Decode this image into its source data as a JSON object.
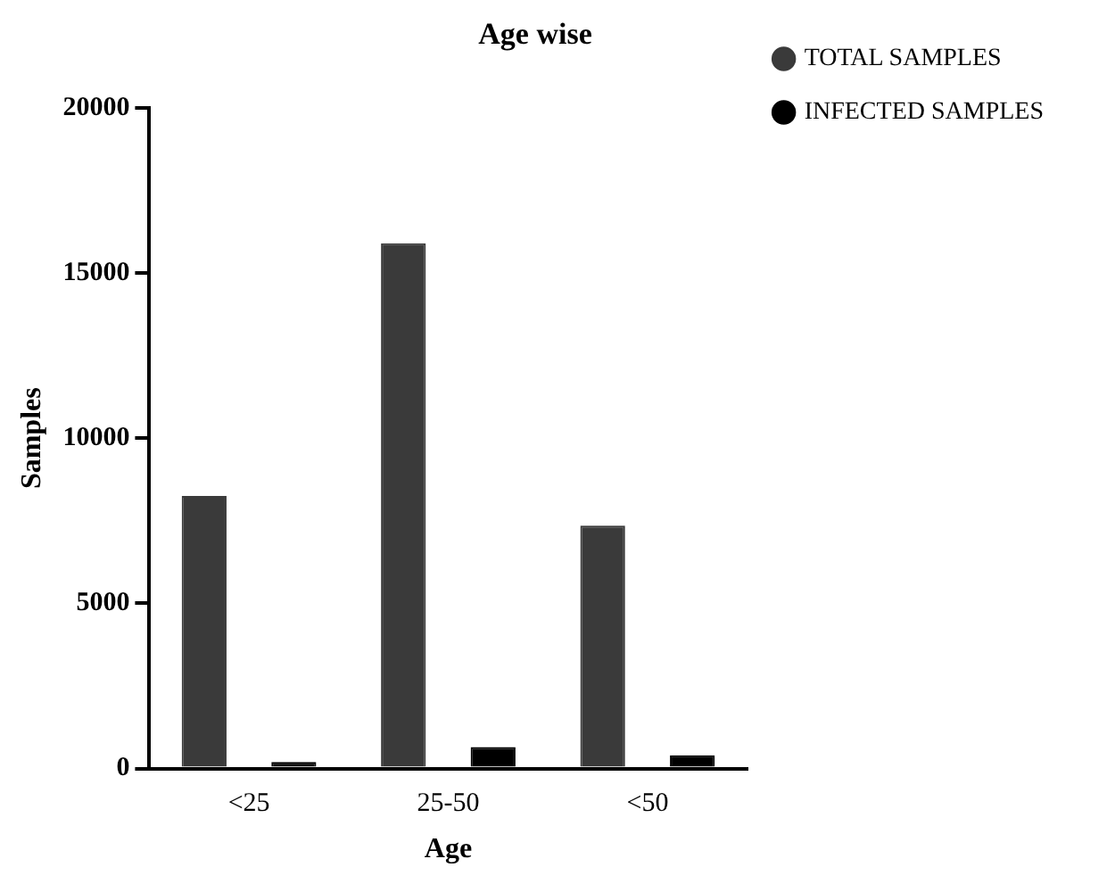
{
  "chart_data": {
    "type": "bar",
    "title": "Age wise",
    "xlabel": "Age",
    "ylabel": "Samples",
    "categories": [
      "<25",
      "25-50",
      "<50"
    ],
    "series": [
      {
        "name": "TOTAL SAMPLES",
        "color": "#3a3a3a",
        "values": [
          8250,
          15900,
          7350
        ]
      },
      {
        "name": "INFECTED SAMPLES",
        "color": "#000000",
        "values": [
          200,
          650,
          400
        ]
      }
    ],
    "ylim": [
      0,
      20000
    ],
    "yticks": [
      0,
      5000,
      10000,
      15000,
      20000
    ],
    "grid": false,
    "legend": "top right",
    "marker": "circle"
  }
}
